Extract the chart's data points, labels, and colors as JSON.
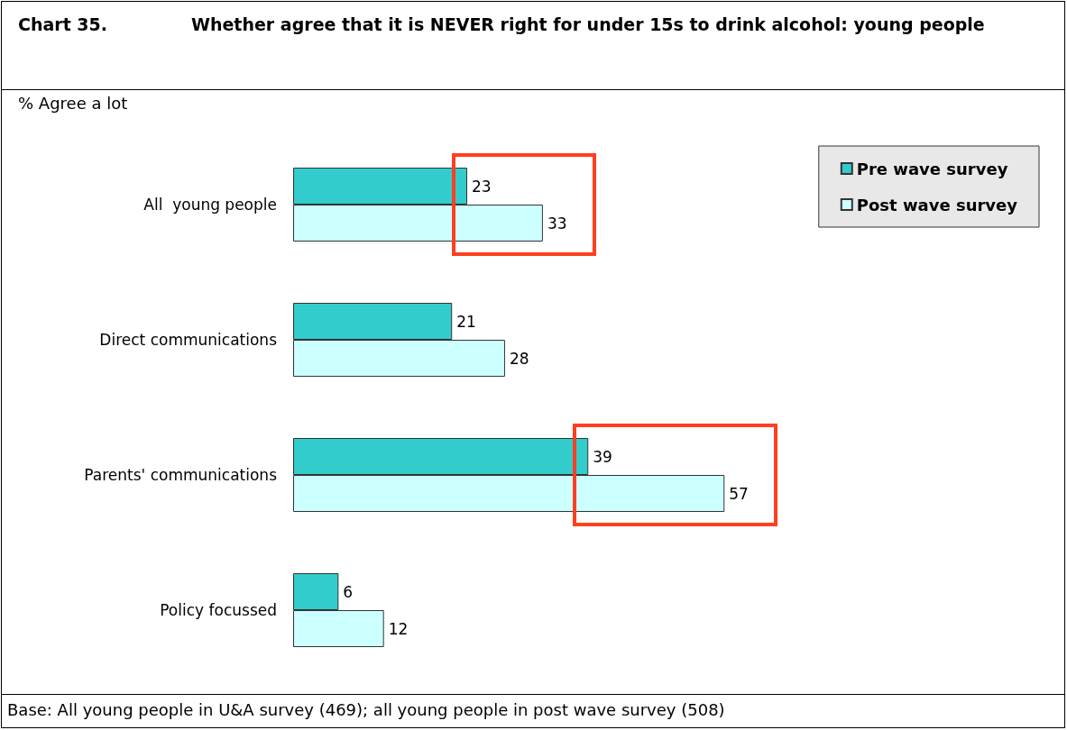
{
  "chart_data": {
    "type": "bar",
    "orientation": "horizontal",
    "title": "Chart 35.\tWhether agree that it is NEVER right for under 15s to drink alcohol: young people",
    "subtitle": "% Agree a lot",
    "categories": [
      "All  young people",
      "Direct communications",
      "Parents' communications",
      "Policy focussed"
    ],
    "series": [
      {
        "name": "Pre wave survey",
        "color": "#33cccc",
        "values": [
          23,
          21,
          39,
          6
        ]
      },
      {
        "name": "Post wave survey",
        "color": "#ccffff",
        "values": [
          33,
          28,
          57,
          12
        ]
      }
    ],
    "data_labels": true,
    "legend": "top right",
    "tick_labels": "y",
    "grid": false,
    "annotations": [
      "Base: All young people in U&A survey (469); all young people in post wave survey (508)"
    ]
  }
}
